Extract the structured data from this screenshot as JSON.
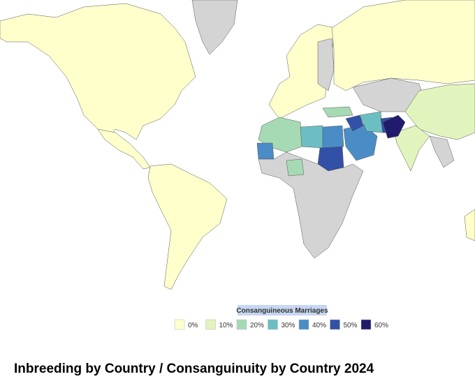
{
  "title": "Inbreeding by Country / Consanguinuity by Country 2024",
  "legend": {
    "title": "Consanguineous Marriages",
    "items": [
      {
        "label": "0%",
        "color": "#ffffcc"
      },
      {
        "label": "10%",
        "color": "#e2f4bd"
      },
      {
        "label": "20%",
        "color": "#a6dab4"
      },
      {
        "label": "30%",
        "color": "#6bbfc3"
      },
      {
        "label": "40%",
        "color": "#4a8dc6"
      },
      {
        "label": "50%",
        "color": "#3350a7"
      },
      {
        "label": "60%",
        "color": "#201b6d"
      }
    ]
  }
}
